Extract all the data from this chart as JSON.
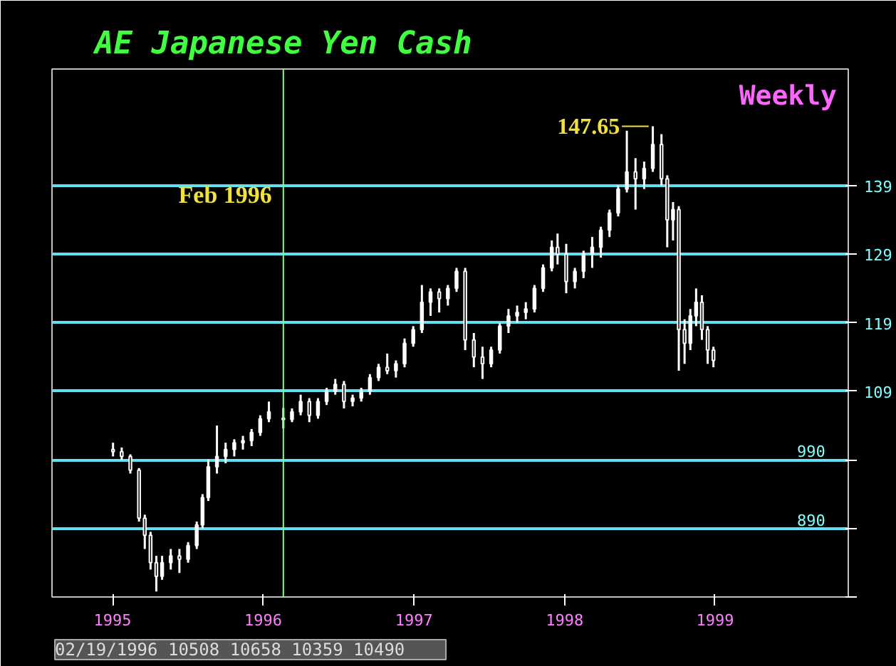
{
  "chart_data": {
    "type": "candlestick",
    "title": "AE  Japanese Yen Cash",
    "subtitle": "Weekly",
    "color": "#ffffff",
    "x": [
      "1995-01-02",
      "1995-01-23",
      "1995-02-13",
      "1995-03-06",
      "1995-03-20",
      "1995-04-03",
      "1995-04-17",
      "1995-05-01",
      "1995-05-22",
      "1995-06-12",
      "1995-07-03",
      "1995-07-24",
      "1995-08-07",
      "1995-08-21",
      "1995-09-11",
      "1995-10-02",
      "1995-10-23",
      "1995-11-13",
      "1995-12-04",
      "1995-12-25",
      "1996-01-15",
      "1996-02-19",
      "1996-03-11",
      "1996-04-01",
      "1996-04-22",
      "1996-05-13",
      "1996-06-03",
      "1996-06-24",
      "1996-07-15",
      "1996-08-05",
      "1996-08-26",
      "1996-09-16",
      "1996-10-07",
      "1996-10-28",
      "1996-11-18",
      "1996-12-09",
      "1996-12-30",
      "1997-01-20",
      "1997-02-10",
      "1997-03-03",
      "1997-03-24",
      "1997-04-14",
      "1997-05-05",
      "1997-05-26",
      "1997-06-16",
      "1997-07-07",
      "1997-07-28",
      "1997-08-18",
      "1997-09-08",
      "1997-09-29",
      "1997-10-20",
      "1997-11-10",
      "1997-12-01",
      "1997-12-15",
      "1998-01-05",
      "1998-01-26",
      "1998-02-16",
      "1998-03-09",
      "1998-03-30",
      "1998-04-20",
      "1998-05-11",
      "1998-06-01",
      "1998-06-22",
      "1998-07-13",
      "1998-08-03",
      "1998-08-24",
      "1998-09-07",
      "1998-09-21",
      "1998-10-05",
      "1998-10-19",
      "1998-11-02",
      "1998-11-16",
      "1998-11-30",
      "1998-12-14",
      "1998-12-28"
    ],
    "ohlc": [
      [
        100.5,
        101.5,
        99.5,
        100.2
      ],
      [
        100.2,
        100.8,
        99.0,
        99.5
      ],
      [
        99.5,
        99.8,
        97.0,
        97.5
      ],
      [
        97.5,
        97.8,
        90.0,
        90.5
      ],
      [
        90.5,
        91.0,
        86.0,
        88.0
      ],
      [
        88.0,
        88.5,
        83.0,
        84.0
      ],
      [
        84.0,
        85.0,
        79.8,
        82.0
      ],
      [
        82.0,
        85.0,
        81.5,
        84.0
      ],
      [
        84.0,
        86.0,
        83.0,
        85.0
      ],
      [
        85.0,
        86.0,
        82.5,
        84.5
      ],
      [
        84.5,
        87.0,
        84.0,
        86.5
      ],
      [
        86.5,
        90.0,
        86.0,
        89.5
      ],
      [
        89.5,
        94.0,
        89.0,
        93.5
      ],
      [
        93.5,
        99.0,
        93.0,
        98.0
      ],
      [
        98.0,
        104.0,
        97.0,
        99.5
      ],
      [
        99.5,
        101.5,
        98.5,
        100.5
      ],
      [
        100.5,
        102.0,
        99.5,
        101.5
      ],
      [
        101.5,
        102.5,
        100.5,
        101.8
      ],
      [
        101.8,
        103.5,
        101.0,
        103.0
      ],
      [
        103.0,
        105.5,
        102.5,
        105.0
      ],
      [
        105.0,
        107.5,
        104.5,
        106.0
      ],
      [
        105.08,
        106.58,
        103.59,
        104.9
      ],
      [
        104.9,
        106.5,
        104.5,
        106.0
      ],
      [
        106.0,
        108.5,
        105.5,
        107.5
      ],
      [
        107.5,
        108.0,
        104.5,
        105.5
      ],
      [
        105.5,
        108.0,
        105.0,
        107.5
      ],
      [
        107.5,
        109.5,
        107.0,
        109.0
      ],
      [
        109.0,
        110.8,
        108.5,
        110.0
      ],
      [
        110.0,
        110.5,
        106.5,
        107.5
      ],
      [
        107.5,
        108.5,
        106.8,
        108.0
      ],
      [
        108.0,
        109.5,
        107.5,
        109.0
      ],
      [
        109.0,
        111.5,
        108.5,
        111.0
      ],
      [
        111.0,
        113.0,
        110.5,
        112.5
      ],
      [
        112.5,
        114.5,
        111.5,
        112.0
      ],
      [
        112.0,
        113.5,
        111.0,
        113.0
      ],
      [
        113.0,
        116.7,
        112.5,
        116.0
      ],
      [
        116.0,
        118.5,
        115.5,
        118.0
      ],
      [
        118.0,
        124.5,
        117.5,
        122.0
      ],
      [
        122.0,
        124.0,
        120.0,
        123.5
      ],
      [
        123.5,
        124.0,
        120.5,
        122.5
      ],
      [
        122.5,
        124.5,
        121.5,
        124.0
      ],
      [
        124.0,
        127.0,
        123.5,
        126.5
      ],
      [
        126.5,
        127.0,
        115.0,
        116.5
      ],
      [
        116.5,
        117.5,
        112.5,
        114.0
      ],
      [
        114.0,
        115.5,
        110.8,
        113.0
      ],
      [
        113.0,
        115.5,
        112.5,
        115.0
      ],
      [
        115.0,
        119.0,
        114.5,
        118.5
      ],
      [
        118.5,
        121.0,
        117.5,
        120.0
      ],
      [
        120.0,
        121.5,
        119.0,
        120.5
      ],
      [
        120.5,
        122.0,
        119.5,
        121.0
      ],
      [
        121.0,
        124.5,
        120.5,
        124.0
      ],
      [
        124.0,
        127.5,
        123.5,
        127.0
      ],
      [
        127.0,
        131.0,
        126.5,
        130.0
      ],
      [
        130.0,
        132.0,
        127.5,
        129.0
      ],
      [
        129.0,
        130.5,
        123.3,
        125.0
      ],
      [
        125.0,
        127.0,
        124.0,
        126.5
      ],
      [
        126.5,
        129.5,
        125.5,
        129.0
      ],
      [
        129.0,
        131.5,
        127.0,
        130.0
      ],
      [
        130.0,
        133.0,
        128.5,
        132.5
      ],
      [
        132.5,
        135.5,
        131.5,
        135.0
      ],
      [
        135.0,
        139.0,
        134.5,
        138.5
      ],
      [
        138.5,
        147.0,
        138.0,
        141.0
      ],
      [
        141.0,
        143.0,
        135.5,
        140.0
      ],
      [
        140.0,
        142.5,
        138.5,
        141.5
      ],
      [
        141.5,
        147.65,
        141.0,
        145.0
      ],
      [
        145.0,
        146.5,
        139.0,
        140.0
      ],
      [
        140.0,
        140.5,
        130.0,
        134.0
      ],
      [
        134.0,
        136.6,
        131.0,
        135.5
      ],
      [
        135.5,
        136.0,
        112.0,
        118.0
      ],
      [
        118.0,
        119.5,
        113.0,
        116.0
      ],
      [
        116.0,
        121.0,
        115.0,
        120.0
      ],
      [
        120.0,
        124.0,
        118.5,
        122.0
      ],
      [
        122.0,
        123.0,
        116.5,
        118.0
      ],
      [
        118.0,
        118.5,
        113.0,
        115.0
      ],
      [
        115.0,
        115.5,
        112.5,
        113.5
      ]
    ],
    "xlim": [
      "1994-08-07",
      "1999-11-20"
    ],
    "xticks": [
      {
        "value": "1995",
        "label": "1995"
      },
      {
        "value": "1996",
        "label": "1996"
      },
      {
        "value": "1997",
        "label": "1997"
      },
      {
        "value": "1998",
        "label": "1998"
      },
      {
        "value": "1999",
        "label": "1999"
      }
    ],
    "ylim": [
      79,
      156
    ],
    "yticks": [
      {
        "value": 79,
        "label": null
      },
      {
        "value": 89,
        "label": null
      },
      {
        "value": 99,
        "label": null
      },
      109,
      119,
      129,
      139
    ],
    "grid": "y",
    "ref_lines": [
      {
        "axis": "x",
        "value": "1996-02-19",
        "label": "Feb 1996",
        "color": "#80ff80"
      }
    ],
    "annotations": [
      {
        "text": "147.65",
        "x": "1998-08-03",
        "y": 147.65
      },
      "02/19/1996  10508  10658  10359  10490",
      "990",
      "890"
    ]
  }
}
